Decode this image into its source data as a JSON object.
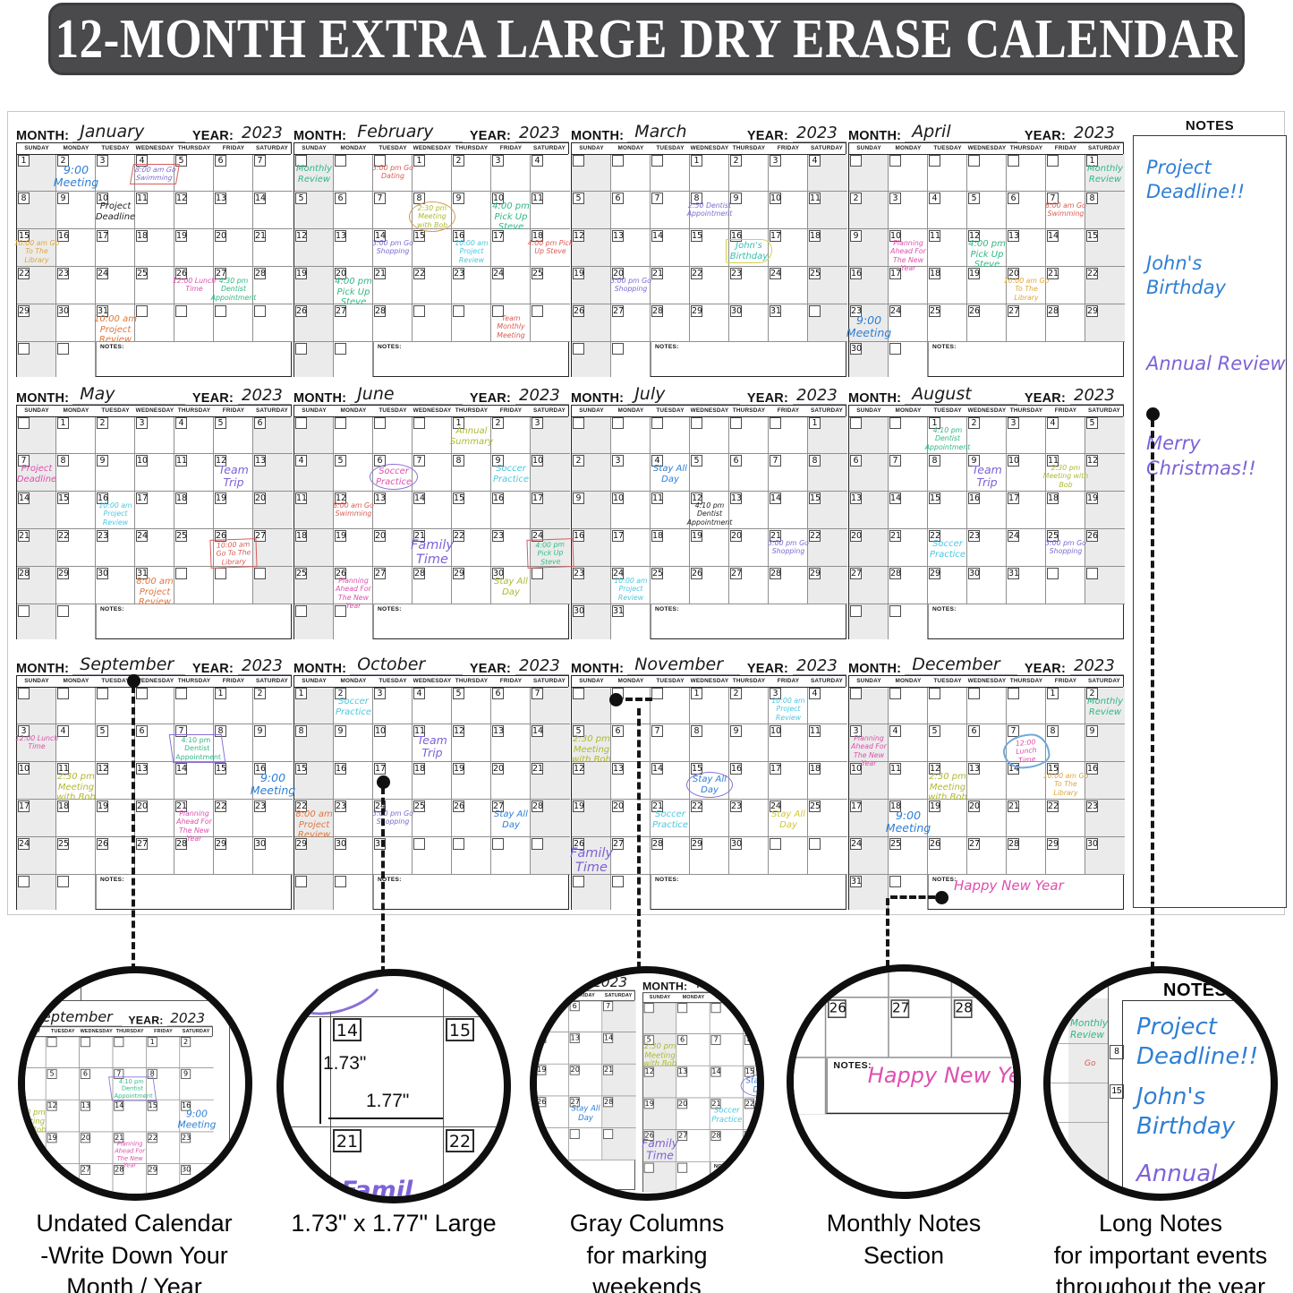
{
  "banner": {
    "text": "12-MONTH EXTRA LARGE DRY ERASE CALENDAR"
  },
  "labels": {
    "month": "MONTH:",
    "year": "YEAR:",
    "notes": "NOTES:"
  },
  "day_headers": [
    "SUNDAY",
    "MONDAY",
    "TUESDAY",
    "WEDNESDAY",
    "THURSDAY",
    "FRIDAY",
    "SATURDAY"
  ],
  "palette": {
    "blue": "#2f7fd4",
    "cyan": "#4cc7e0",
    "green": "#2fb883",
    "red": "#da5a52",
    "pink": "#df4fae",
    "purple": "#7e6ad0",
    "violet": "#7e62d8",
    "gold": "#dea63c",
    "orange": "#e0763a",
    "olive": "#afb92f",
    "yellow": "#cfc73a",
    "teal": "#35bdb2",
    "black": "#222222"
  },
  "months": [
    {
      "name": "January",
      "year": "2023",
      "start": 0,
      "days": 31,
      "gray": [
        0
      ],
      "events": [
        {
          "day": 2,
          "text": "9:00 Meeting",
          "color": "blue",
          "size": "lg"
        },
        {
          "day": 4,
          "text": "8:00 am Go Swimming",
          "color": "purple",
          "size": "sm",
          "shape": "trap-red"
        },
        {
          "day": 10,
          "text": "Project Deadline",
          "color": "black",
          "size": "md"
        },
        {
          "day": 15,
          "text": "10:00 am Go To The Library",
          "color": "gold",
          "size": "sm"
        },
        {
          "day": 26,
          "text": "12:00 Lunch Time",
          "color": "pink",
          "size": "sm"
        },
        {
          "day": 27,
          "text": "4:30 pm Dentist Appointment",
          "color": "green",
          "size": "sm"
        },
        {
          "day": 31,
          "text": "10:00 am Project Review",
          "color": "orange",
          "size": "md"
        }
      ]
    },
    {
      "name": "February",
      "year": "2023",
      "start": 3,
      "days": 28,
      "gray": [
        0
      ],
      "events": [
        {
          "cell": [
            0,
            0
          ],
          "text": "Monthly Review",
          "color": "green",
          "size": "md"
        },
        {
          "cell": [
            0,
            2
          ],
          "text": "3:00 pm Go Dating",
          "color": "red",
          "size": "sm"
        },
        {
          "day": 8,
          "text": "2:30 pm Meeting with Bob",
          "color": "olive",
          "size": "sm",
          "shape": "circle-orange"
        },
        {
          "day": 10,
          "text": "4:00 pm Pick Up Steve",
          "color": "green",
          "size": "md"
        },
        {
          "day": 14,
          "text": "3:00 pm Go Shopping",
          "color": "purple",
          "size": "sm"
        },
        {
          "day": 16,
          "text": "10:00 am Project Review",
          "color": "cyan",
          "size": "sm"
        },
        {
          "day": 18,
          "text": "4:00 pm Pick Up Steve",
          "color": "red",
          "size": "sm"
        },
        {
          "day": 20,
          "text": "4:00 pm Pick Up Steve",
          "color": "green",
          "size": "md"
        },
        {
          "cell": [
            4,
            5
          ],
          "text": "Team Monthly Meeting",
          "color": "red",
          "size": "sm"
        }
      ]
    },
    {
      "name": "March",
      "year": "2023",
      "start": 3,
      "days": 31,
      "gray": [
        0,
        6
      ],
      "events": [
        {
          "day": 8,
          "text": "2:50 Dentist Appointment",
          "color": "purple",
          "size": "sm"
        },
        {
          "day": 16,
          "text": "John's Birthday",
          "color": "teal",
          "size": "md",
          "shape": "poly-yellow"
        },
        {
          "day": 20,
          "text": "3:00 pm Go Shopping",
          "color": "purple",
          "size": "sm"
        }
      ]
    },
    {
      "name": "April",
      "year": "2023",
      "start": 6,
      "days": 30,
      "gray": [
        0,
        6
      ],
      "events": [
        {
          "day": 1,
          "text": "Monthly Review",
          "color": "green",
          "size": "md"
        },
        {
          "day": 7,
          "text": "8:00 am Go Swimming",
          "color": "red",
          "size": "sm"
        },
        {
          "day": 10,
          "text": "Planning Ahead For The New Year",
          "color": "pink",
          "size": "sm"
        },
        {
          "day": 12,
          "text": "4:00 pm Pick Up Steve",
          "color": "green",
          "size": "md"
        },
        {
          "day": 20,
          "text": "10:00 am Go To The Library",
          "color": "gold",
          "size": "sm"
        },
        {
          "day": 23,
          "text": "9:00 Meeting",
          "color": "blue",
          "size": "lg"
        }
      ]
    },
    {
      "name": "May",
      "year": "2023",
      "start": 1,
      "days": 31,
      "gray": [
        0,
        6
      ],
      "events": [
        {
          "day": 7,
          "text": "Project Deadline",
          "color": "pink",
          "size": "md"
        },
        {
          "day": 12,
          "text": "Team Trip",
          "color": "violet",
          "size": "lg"
        },
        {
          "day": 16,
          "text": "10:00 am Project Review",
          "color": "cyan",
          "size": "sm"
        },
        {
          "day": 26,
          "text": "10:00 am Go To The Library",
          "color": "red",
          "size": "sm",
          "shape": "box-red"
        },
        {
          "day": 31,
          "text": "8:00 am Project Review",
          "color": "orange",
          "size": "md"
        }
      ]
    },
    {
      "name": "June",
      "year": "2023",
      "start": 4,
      "days": 30,
      "gray": [
        0,
        6
      ],
      "events": [
        {
          "day": 1,
          "text": "Annual Summary",
          "color": "olive",
          "size": "md"
        },
        {
          "day": 6,
          "text": "Soccer Practice",
          "color": "pink",
          "size": "md",
          "shape": "ellipse-purple"
        },
        {
          "day": 9,
          "text": "Soccer Practice",
          "color": "cyan",
          "size": "md"
        },
        {
          "day": 12,
          "text": "8:00 am Go Swimming",
          "color": "red",
          "size": "sm"
        },
        {
          "day": 21,
          "text": "Family Time",
          "color": "violet",
          "size": "xl"
        },
        {
          "day": 24,
          "text": "4:00 pm Pick Up Steve",
          "color": "green",
          "size": "sm",
          "shape": "box-red"
        },
        {
          "day": 26,
          "text": "Planning Ahead For The New Year",
          "color": "pink",
          "size": "sm"
        },
        {
          "day": 30,
          "text": "Stay All Day",
          "color": "olive",
          "size": "md"
        }
      ]
    },
    {
      "name": "July",
      "year": "2023",
      "start": 6,
      "days": 31,
      "gray": [
        0,
        6
      ],
      "events": [
        {
          "day": 4,
          "text": "Stay All Day",
          "color": "blue",
          "size": "md"
        },
        {
          "day": 12,
          "text": "4:10 pm Dentist Appointment",
          "color": "black",
          "size": "sm"
        },
        {
          "day": 21,
          "text": "3:00 pm Go Shopping",
          "color": "purple",
          "size": "sm"
        },
        {
          "day": 24,
          "text": "10:00 am Project Review",
          "color": "cyan",
          "size": "sm"
        }
      ]
    },
    {
      "name": "August",
      "year": "2023",
      "start": 2,
      "days": 31,
      "gray": [
        0,
        6
      ],
      "events": [
        {
          "day": 1,
          "text": "4:10 pm Dentist Appointment",
          "color": "green",
          "size": "sm"
        },
        {
          "day": 9,
          "text": "Team Trip",
          "color": "violet",
          "size": "lg"
        },
        {
          "day": 11,
          "text": "2:30 pm Meeting with Bob",
          "color": "olive",
          "size": "sm"
        },
        {
          "day": 22,
          "text": "Soccer Practice",
          "color": "cyan",
          "size": "md"
        },
        {
          "day": 25,
          "text": "3:00 pm Go Shopping",
          "color": "purple",
          "size": "sm"
        }
      ]
    },
    {
      "name": "September",
      "year": "2023",
      "start": 5,
      "days": 30,
      "gray": [
        0
      ],
      "events": [
        {
          "day": 3,
          "text": "12:00 Lunch Time",
          "color": "pink",
          "size": "sm"
        },
        {
          "day": 7,
          "text": "4:10 pm Dentist Appointment",
          "color": "green",
          "size": "sm",
          "shape": "trap-purple"
        },
        {
          "day": 11,
          "text": "2:30 pm Meeting with Bob",
          "color": "olive",
          "size": "md"
        },
        {
          "day": 16,
          "text": "9:00 Meeting",
          "color": "blue",
          "size": "lg"
        },
        {
          "day": 21,
          "text": "Planning Ahead For The New Year",
          "color": "pink",
          "size": "sm"
        }
      ]
    },
    {
      "name": "October",
      "year": "2023",
      "start": 0,
      "days": 31,
      "gray": [
        0,
        6
      ],
      "events": [
        {
          "day": 2,
          "text": "Soccer Practice",
          "color": "cyan",
          "size": "md"
        },
        {
          "day": 11,
          "text": "Team Trip",
          "color": "violet",
          "size": "lg"
        },
        {
          "day": 22,
          "text": "8:00 am Project Review",
          "color": "orange",
          "size": "md"
        },
        {
          "day": 24,
          "text": "3:00 pm Go Shopping",
          "color": "purple",
          "size": "sm"
        },
        {
          "day": 27,
          "text": "Stay All Day",
          "color": "blue",
          "size": "md"
        }
      ]
    },
    {
      "name": "November",
      "year": "2023",
      "start": 3,
      "days": 30,
      "gray": [
        0
      ],
      "events": [
        {
          "day": 3,
          "text": "10:00 am Project Review",
          "color": "cyan",
          "size": "sm"
        },
        {
          "day": 5,
          "text": "2:30 pm Meeting with Bob",
          "color": "olive",
          "size": "md"
        },
        {
          "day": 15,
          "text": "Stay All Day",
          "color": "blue",
          "size": "md",
          "shape": "ellipse-purple"
        },
        {
          "day": 21,
          "text": "Soccer Practice",
          "color": "cyan",
          "size": "md"
        },
        {
          "day": 24,
          "text": "Stay All Day",
          "color": "yellow",
          "size": "md"
        },
        {
          "day": 26,
          "text": "Family Time",
          "color": "violet",
          "size": "xl"
        }
      ]
    },
    {
      "name": "December",
      "year": "2023",
      "start": 5,
      "days": 31,
      "gray": [
        0,
        6
      ],
      "note": {
        "text": "Happy New Year",
        "color": "pink"
      },
      "events": [
        {
          "day": 2,
          "text": "Monthly Review",
          "color": "green",
          "size": "md"
        },
        {
          "day": 3,
          "text": "Planning Ahead For The New Year",
          "color": "pink",
          "size": "sm"
        },
        {
          "day": 7,
          "text": "12:00 Lunch Time",
          "color": "pink",
          "size": "sm",
          "shape": "scribble-blue"
        },
        {
          "day": 12,
          "text": "2:30 pm Meeting with Bob",
          "color": "olive",
          "size": "md"
        },
        {
          "day": 15,
          "text": "10:00 am Go To The Library",
          "color": "gold",
          "size": "sm"
        },
        {
          "day": 18,
          "text": "9:00 Meeting",
          "color": "blue",
          "size": "lg"
        }
      ]
    }
  ],
  "side_notes": {
    "header": "NOTES",
    "items": [
      {
        "text": "Project Deadline!!",
        "color": "blue"
      },
      {
        "text": "John's Birthday",
        "color": "blue"
      },
      {
        "text": "Annual Review",
        "color": "violet"
      },
      {
        "text": "Merry Christmas!!",
        "color": "violet"
      }
    ]
  },
  "measure": {
    "cells": [
      "14",
      "15",
      "21",
      "22"
    ],
    "height": "1.73\"",
    "width": "1.77\"",
    "partial": "Famil"
  },
  "long_notes": {
    "header": "NOTES",
    "items": [
      {
        "text": "Project Deadline!!",
        "color": "blue"
      },
      {
        "text": "John's Birthday",
        "color": "blue"
      },
      {
        "text": "Annual",
        "color": "violet"
      }
    ],
    "side_fragment": {
      "dayhdr": "URDAY",
      "review": "Monthly Review",
      "n1": "8",
      "n2": "15",
      "partial": "Go"
    }
  },
  "callouts": [
    {
      "caption_lines": [
        "Undated Calendar",
        "-Write Down Your",
        "Month / Year"
      ]
    },
    {
      "caption_lines": [
        "1.73\" x 1.77\" Large"
      ]
    },
    {
      "caption_lines": [
        "Gray Columns",
        "for marking",
        "weekends"
      ]
    },
    {
      "caption_lines": [
        "Monthly Notes",
        "Section"
      ]
    },
    {
      "caption_lines": [
        "Long Notes",
        "for important events",
        "throughout the year"
      ]
    }
  ]
}
